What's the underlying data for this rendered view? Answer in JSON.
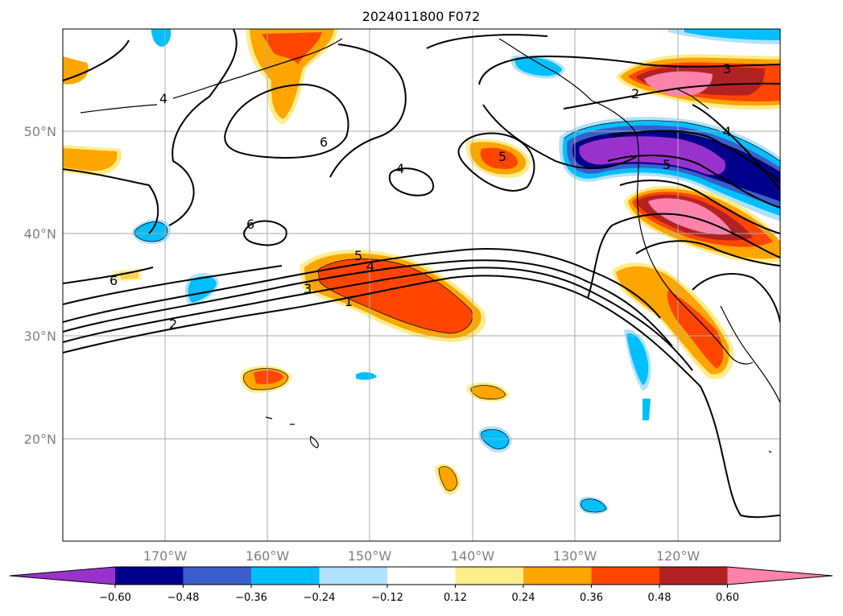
{
  "title": "2024011800 F072",
  "map": {
    "lat_labels": [
      "50°N",
      "40°N",
      "30°N",
      "20°N"
    ],
    "lon_labels": [
      "170°W",
      "160°W",
      "150°W",
      "140°W",
      "130°W",
      "120°W"
    ],
    "contour_labels": [
      "6",
      "4",
      "6",
      "4",
      "6",
      "5",
      "5",
      "4",
      "3",
      "1",
      "2",
      "3",
      "2",
      "4",
      "5"
    ]
  },
  "colorbar": {
    "ticks": [
      "−0.60",
      "−0.48",
      "−0.36",
      "−0.24",
      "−0.12",
      "0.12",
      "0.24",
      "0.36",
      "0.48",
      "0.60"
    ],
    "colors": [
      "#9932CC",
      "#00008B",
      "#3A5FCD",
      "#00BFFF",
      "#B0E2FF",
      "#FFFFFF",
      "#FFEC8B",
      "#FFA500",
      "#FF4500",
      "#B22222",
      "#FF82AB"
    ]
  }
}
